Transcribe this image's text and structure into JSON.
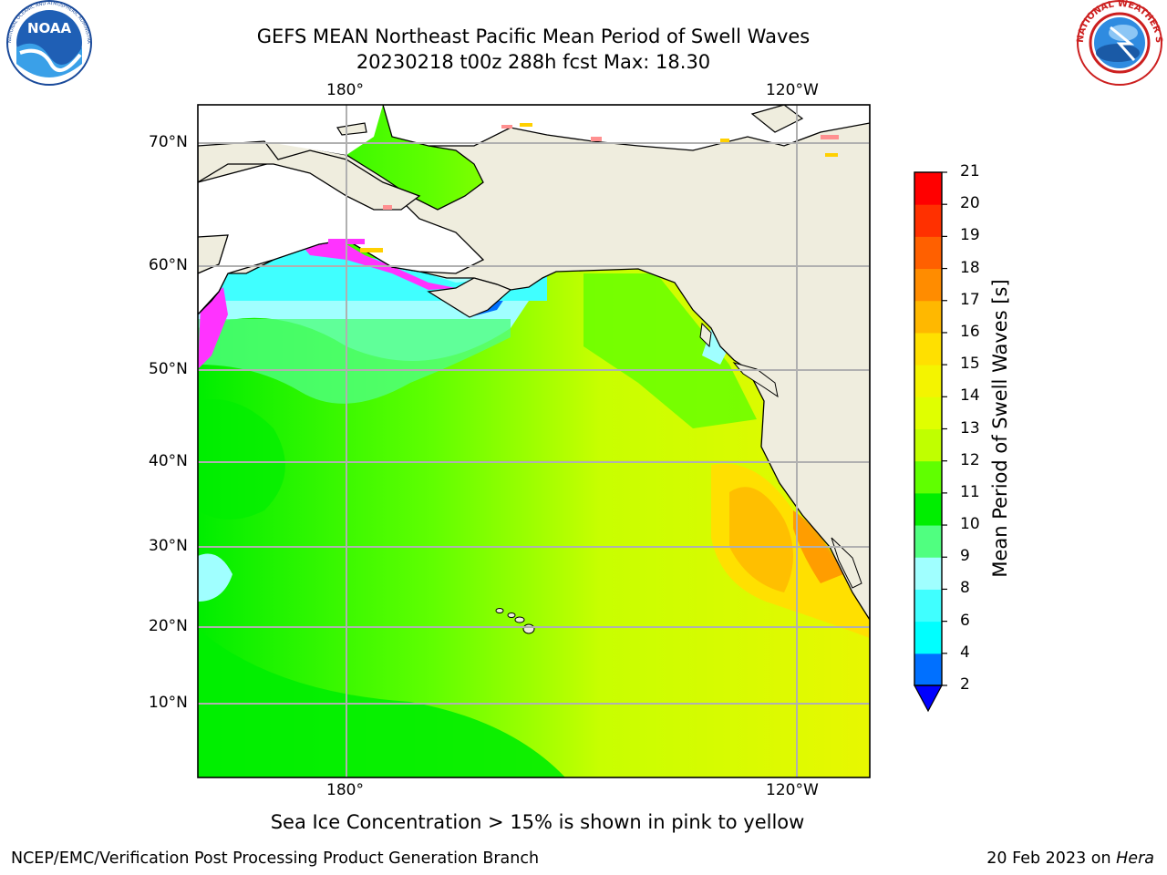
{
  "title": {
    "line1": "GEFS MEAN Northeast Pacific Mean Period of Swell Waves",
    "line2": "20230218 t00z 288h fcst   Max: 18.30"
  },
  "logos": {
    "noaa_text": "NOAA",
    "noaa_ring": "NATIONAL OCEANIC AND ATMOSPHERIC ADMINISTRATION · U.S. DEPARTMENT OF COMMERCE",
    "nws_ring": "NATIONAL WEATHER SERVICE"
  },
  "map": {
    "lon_labels_top": [
      "180°",
      "120°W"
    ],
    "lon_labels_bottom": [
      "180°",
      "120°W"
    ],
    "lat_labels": [
      "70°N",
      "60°N",
      "50°N",
      "40°N",
      "30°N",
      "20°N",
      "10°N"
    ],
    "colors": {
      "land": "#efedde",
      "coast": "#000000",
      "grid": "#b0b0b0"
    }
  },
  "colorbar": {
    "label": "Mean Period of Swell Waves [s]",
    "ticks": [
      "2",
      "4",
      "6",
      "8",
      "9",
      "10",
      "11",
      "12",
      "13",
      "14",
      "15",
      "16",
      "17",
      "18",
      "19",
      "20",
      "21"
    ],
    "colors": [
      "#0070ff",
      "#00ffff",
      "#40ffff",
      "#a0ffff",
      "#50ff80",
      "#00ee00",
      "#60ff00",
      "#c0ff00",
      "#e0ff00",
      "#f4f400",
      "#ffe000",
      "#ffb800",
      "#ff8c00",
      "#ff6000",
      "#ff3000",
      "#ff0000"
    ],
    "under_color": "#0000ff"
  },
  "caption": "Sea Ice Concentration > 15% is shown in pink to yellow",
  "footer": {
    "left": "NCEP/EMC/Verification Post Processing Product Generation Branch",
    "date": "20 Feb 2023 on ",
    "host": "Hera"
  }
}
